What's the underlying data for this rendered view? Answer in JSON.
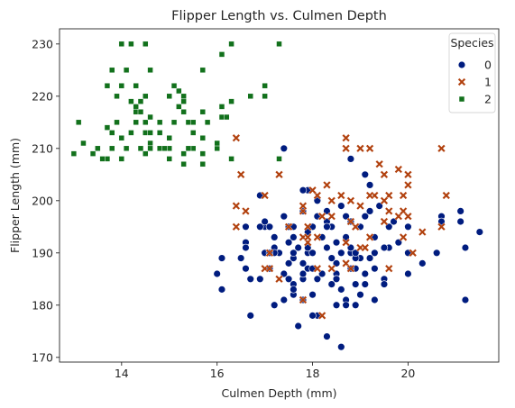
{
  "chart_data": {
    "type": "scatter",
    "title": "Flipper Length vs. Culmen Depth",
    "xlabel": "Culmen Depth (mm)",
    "ylabel": "Flipper Length (mm)",
    "xlim": [
      12.7,
      21.9
    ],
    "ylim": [
      169.1,
      232.9
    ],
    "xticks": [
      14,
      16,
      18,
      20
    ],
    "yticks": [
      170,
      180,
      190,
      200,
      210,
      220,
      230
    ],
    "grid": false,
    "legend": {
      "title": "Species",
      "placement": "top-right"
    },
    "series": [
      {
        "name": "0",
        "marker": "circle",
        "color": "#001c7f",
        "points": [
          [
            18.7,
            181
          ],
          [
            17.4,
            186
          ],
          [
            18.0,
            195
          ],
          [
            19.3,
            193
          ],
          [
            20.6,
            190
          ],
          [
            17.8,
            181
          ],
          [
            19.6,
            195
          ],
          [
            17.6,
            182
          ],
          [
            21.2,
            191
          ],
          [
            21.1,
            198
          ],
          [
            17.8,
            185
          ],
          [
            19.0,
            195
          ],
          [
            20.7,
            197
          ],
          [
            18.4,
            184
          ],
          [
            21.5,
            194
          ],
          [
            18.3,
            174
          ],
          [
            18.7,
            180
          ],
          [
            19.2,
            189
          ],
          [
            18.1,
            185
          ],
          [
            17.2,
            180
          ],
          [
            18.9,
            187
          ],
          [
            18.6,
            183
          ],
          [
            17.9,
            187
          ],
          [
            18.6,
            172
          ],
          [
            18.9,
            180
          ],
          [
            16.7,
            178
          ],
          [
            18.1,
            178
          ],
          [
            17.8,
            188
          ],
          [
            18.9,
            184
          ],
          [
            17.0,
            195
          ],
          [
            21.1,
            196
          ],
          [
            20.0,
            190
          ],
          [
            18.5,
            180
          ],
          [
            19.3,
            181
          ],
          [
            19.1,
            184
          ],
          [
            18.0,
            182
          ],
          [
            18.4,
            195
          ],
          [
            18.5,
            186
          ],
          [
            19.7,
            196
          ],
          [
            16.9,
            185
          ],
          [
            18.8,
            190
          ],
          [
            19.0,
            182
          ],
          [
            17.9,
            190
          ],
          [
            21.2,
            191
          ],
          [
            17.8,
            186
          ],
          [
            20.3,
            188
          ],
          [
            17.3,
            190
          ],
          [
            18.1,
            200
          ],
          [
            17.1,
            187
          ],
          [
            19.6,
            191
          ],
          [
            20.0,
            186
          ],
          [
            17.6,
            193
          ],
          [
            21.2,
            181
          ],
          [
            17.9,
            194
          ],
          [
            19.5,
            185
          ],
          [
            16.9,
            195
          ],
          [
            18.5,
            192
          ],
          [
            17.6,
            184
          ],
          [
            16.6,
            192
          ],
          [
            20.0,
            195
          ],
          [
            17.5,
            188
          ],
          [
            19.3,
            190
          ],
          [
            19.2,
            198
          ],
          [
            17.0,
            190
          ],
          [
            18.6,
            190
          ],
          [
            17.0,
            196
          ],
          [
            18.1,
            197
          ],
          [
            17.6,
            190
          ],
          [
            18.4,
            195
          ],
          [
            17.2,
            191
          ],
          [
            19.5,
            184
          ],
          [
            16.6,
            187
          ],
          [
            17.5,
            195
          ],
          [
            17.6,
            189
          ],
          [
            18.8,
            196
          ],
          [
            19.3,
            187
          ],
          [
            18.2,
            193
          ],
          [
            19.5,
            191
          ],
          [
            17.9,
            194
          ],
          [
            17.2,
            190
          ],
          [
            18.4,
            189
          ],
          [
            19.0,
            189
          ],
          [
            17.6,
            190
          ],
          [
            17.9,
            202
          ],
          [
            19.1,
            205
          ],
          [
            17.5,
            185
          ],
          [
            19.1,
            186
          ],
          [
            16.6,
            187
          ],
          [
            18.8,
            208
          ],
          [
            17.1,
            190
          ],
          [
            20.7,
            196
          ],
          [
            18.0,
            178
          ],
          [
            19.8,
            192
          ],
          [
            18.5,
            192
          ],
          [
            19.2,
            203
          ],
          [
            17.6,
            183
          ],
          [
            20.0,
            190
          ],
          [
            18.7,
            193
          ],
          [
            18.4,
            184
          ],
          [
            19.4,
            199
          ],
          [
            18.6,
            190
          ],
          [
            17.4,
            181
          ],
          [
            18.7,
            197
          ],
          [
            17.8,
            198
          ],
          [
            16.6,
            191
          ],
          [
            18.2,
            193
          ],
          [
            17.4,
            197
          ],
          [
            17.9,
            191
          ],
          [
            18.3,
            196
          ],
          [
            18.5,
            188
          ],
          [
            18.6,
            199
          ],
          [
            18.9,
            189
          ],
          [
            16.5,
            189
          ],
          [
            18.0,
            187
          ],
          [
            18.3,
            198
          ],
          [
            17.7,
            176
          ],
          [
            17.8,
            202
          ],
          [
            18.2,
            186
          ],
          [
            18.6,
            199
          ],
          [
            18.8,
            191
          ],
          [
            17.1,
            195
          ],
          [
            18.3,
            191
          ],
          [
            16.0,
            186
          ],
          [
            17.4,
            210
          ],
          [
            18.3,
            195
          ],
          [
            16.1,
            183
          ],
          [
            17.2,
            193
          ],
          [
            18.0,
            190
          ],
          [
            19.1,
            197
          ],
          [
            18.5,
            185
          ],
          [
            17.7,
            191
          ],
          [
            17.6,
            195
          ],
          [
            18.9,
            190
          ],
          [
            18.8,
            187
          ],
          [
            16.6,
            195
          ],
          [
            16.1,
            189
          ],
          [
            16.7,
            185
          ],
          [
            18.5,
            185
          ],
          [
            17.5,
            192
          ],
          [
            16.9,
            201
          ]
        ]
      },
      {
        "name": "1",
        "marker": "x",
        "color": "#b1400d",
        "points": [
          [
            17.9,
            192
          ],
          [
            19.5,
            196
          ],
          [
            19.2,
            193
          ],
          [
            18.7,
            188
          ],
          [
            19.8,
            197
          ],
          [
            17.8,
            198
          ],
          [
            18.2,
            178
          ],
          [
            18.2,
            197
          ],
          [
            18.9,
            195
          ],
          [
            19.9,
            198
          ],
          [
            17.8,
            193
          ],
          [
            20.3,
            194
          ],
          [
            17.3,
            185
          ],
          [
            18.1,
            201
          ],
          [
            17.1,
            190
          ],
          [
            19.6,
            201
          ],
          [
            20.0,
            197
          ],
          [
            17.8,
            181
          ],
          [
            20.1,
            190
          ],
          [
            18.9,
            195
          ],
          [
            19.0,
            191
          ],
          [
            18.8,
            187
          ],
          [
            17.9,
            193
          ],
          [
            20.7,
            195
          ],
          [
            18.4,
            197
          ],
          [
            18.4,
            200
          ],
          [
            19.5,
            200
          ],
          [
            19.1,
            191
          ],
          [
            16.5,
            205
          ],
          [
            17.0,
            187
          ],
          [
            18.6,
            201
          ],
          [
            17.1,
            187
          ],
          [
            20.0,
            203
          ],
          [
            16.4,
            195
          ],
          [
            19.0,
            199
          ],
          [
            17.5,
            195
          ],
          [
            18.7,
            210
          ],
          [
            18.7,
            192
          ],
          [
            17.3,
            205
          ],
          [
            20.7,
            210
          ],
          [
            19.6,
            187
          ],
          [
            16.4,
            212
          ],
          [
            18.1,
            187
          ],
          [
            19.6,
            198
          ],
          [
            17.8,
            199
          ],
          [
            19.3,
            201
          ],
          [
            18.1,
            193
          ],
          [
            18.3,
            203
          ],
          [
            18.4,
            187
          ],
          [
            19.9,
            201
          ],
          [
            18.2,
            197
          ],
          [
            19.4,
            207
          ],
          [
            17.0,
            201
          ],
          [
            19.5,
            205
          ],
          [
            19.8,
            206
          ],
          [
            17.9,
            195
          ],
          [
            18.8,
            200
          ],
          [
            19.2,
            201
          ],
          [
            18.7,
            212
          ],
          [
            20.0,
            205
          ],
          [
            16.4,
            199
          ],
          [
            16.6,
            198
          ],
          [
            19.9,
            193
          ],
          [
            18.0,
            202
          ],
          [
            19.0,
            210
          ],
          [
            20.8,
            201
          ],
          [
            19.2,
            210
          ],
          [
            18.8,
            196
          ]
        ]
      },
      {
        "name": "2",
        "marker": "square",
        "color": "#12711c",
        "points": [
          [
            13.2,
            211
          ],
          [
            16.3,
            230
          ],
          [
            14.1,
            210
          ],
          [
            15.2,
            218
          ],
          [
            14.5,
            215
          ],
          [
            13.5,
            210
          ],
          [
            14.6,
            211
          ],
          [
            15.3,
            219
          ],
          [
            13.4,
            209
          ],
          [
            15.4,
            215
          ],
          [
            13.7,
            214
          ],
          [
            16.1,
            216
          ],
          [
            13.7,
            214
          ],
          [
            14.6,
            213
          ],
          [
            14.6,
            210
          ],
          [
            15.7,
            217
          ],
          [
            13.5,
            210
          ],
          [
            15.2,
            221
          ],
          [
            14.5,
            209
          ],
          [
            15.1,
            222
          ],
          [
            14.3,
            218
          ],
          [
            14.5,
            215
          ],
          [
            14.5,
            213
          ],
          [
            15.8,
            215
          ],
          [
            13.1,
            215
          ],
          [
            15.1,
            215
          ],
          [
            14.3,
            215
          ],
          [
            15.0,
            220
          ],
          [
            14.3,
            222
          ],
          [
            15.3,
            209
          ],
          [
            15.3,
            207
          ],
          [
            14.2,
            230
          ],
          [
            14.5,
            220
          ],
          [
            17.0,
            220
          ],
          [
            14.8,
            213
          ],
          [
            16.3,
            219
          ],
          [
            13.7,
            208
          ],
          [
            17.3,
            208
          ],
          [
            13.6,
            208
          ],
          [
            15.7,
            225
          ],
          [
            16.0,
            210
          ],
          [
            16.2,
            216
          ],
          [
            13.7,
            222
          ],
          [
            14.3,
            217
          ],
          [
            14.8,
            210
          ],
          [
            13.8,
            225
          ],
          [
            14.8,
            213
          ],
          [
            13.9,
            215
          ],
          [
            15.0,
            210
          ],
          [
            16.7,
            220
          ],
          [
            14.0,
            222
          ],
          [
            13.0,
            209
          ],
          [
            15.7,
            207
          ],
          [
            14.0,
            230
          ],
          [
            15.3,
            220
          ],
          [
            13.9,
            220
          ],
          [
            14.2,
            213
          ],
          [
            14.4,
            219
          ],
          [
            15.0,
            208
          ],
          [
            14.0,
            208
          ],
          [
            16.3,
            208
          ],
          [
            14.1,
            225
          ],
          [
            15.5,
            210
          ],
          [
            14.6,
            216
          ],
          [
            15.1,
            222
          ],
          [
            14.4,
            217
          ],
          [
            15.0,
            210
          ],
          [
            14.6,
            225
          ],
          [
            13.8,
            213
          ],
          [
            14.8,
            215
          ],
          [
            14.9,
            210
          ],
          [
            14.5,
            220
          ],
          [
            17.0,
            222
          ],
          [
            15.7,
            209
          ],
          [
            16.1,
            218
          ],
          [
            15.5,
            215
          ],
          [
            14.6,
            213
          ],
          [
            17.3,
            230
          ],
          [
            15.5,
            213
          ],
          [
            13.8,
            210
          ],
          [
            15.7,
            212
          ],
          [
            14.0,
            212
          ],
          [
            15.0,
            212
          ],
          [
            16.0,
            211
          ],
          [
            14.4,
            210
          ],
          [
            14.2,
            219
          ],
          [
            16.1,
            228
          ],
          [
            15.3,
            217
          ],
          [
            15.4,
            210
          ],
          [
            14.5,
            230
          ]
        ]
      }
    ]
  }
}
